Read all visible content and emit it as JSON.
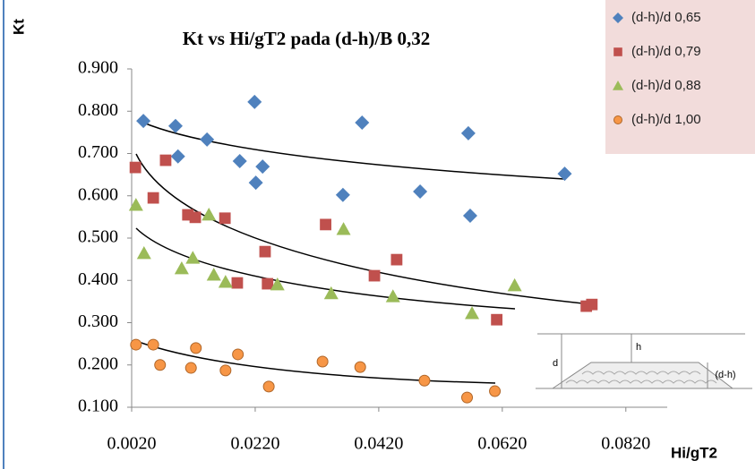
{
  "chart_data": {
    "type": "scatter",
    "title": "Kt vs Hi/gT2 pada (d-h)/B 0,32",
    "y_label": "Kt",
    "x_label": "Hi/gT2",
    "xlim": [
      0.002,
      0.0887
    ],
    "ylim": [
      0.1,
      0.9
    ],
    "xticks": [
      {
        "value": 0.002,
        "label": "0.0020"
      },
      {
        "value": 0.022,
        "label": "0.0220"
      },
      {
        "value": 0.042,
        "label": "0.0420"
      },
      {
        "value": 0.062,
        "label": "0.0620"
      },
      {
        "value": 0.082,
        "label": "0.0820"
      }
    ],
    "yticks": [
      {
        "value": 0.1,
        "label": "0.100"
      },
      {
        "value": 0.2,
        "label": "0.200"
      },
      {
        "value": 0.3,
        "label": "0.300"
      },
      {
        "value": 0.4,
        "label": "0.400"
      },
      {
        "value": 0.5,
        "label": "0.500"
      },
      {
        "value": 0.6,
        "label": "0.600"
      },
      {
        "value": 0.7,
        "label": "0.700"
      },
      {
        "value": 0.8,
        "label": "0.800"
      },
      {
        "value": 0.9,
        "label": "0.900"
      }
    ],
    "legend": "top-right",
    "series": [
      {
        "name": "(d-h)/d 0,65",
        "color": "#4f81bd",
        "marker": "diamond",
        "x": [
          0.0039,
          0.0091,
          0.0095,
          0.0142,
          0.0219,
          0.0195,
          0.0221,
          0.0232,
          0.0362,
          0.0393,
          0.0487,
          0.0565,
          0.0568,
          0.0721
        ],
        "values": [
          0.777,
          0.765,
          0.693,
          0.733,
          0.822,
          0.682,
          0.631,
          0.669,
          0.602,
          0.773,
          0.61,
          0.748,
          0.553,
          0.652
        ]
      },
      {
        "name": "(d-h)/d 0,79",
        "color": "#c0504d",
        "marker": "square",
        "x": [
          0.0026,
          0.0055,
          0.0075,
          0.0111,
          0.0123,
          0.0171,
          0.0191,
          0.0236,
          0.024,
          0.0334,
          0.0413,
          0.0449,
          0.0611,
          0.0756,
          0.0765
        ],
        "values": [
          0.667,
          0.595,
          0.684,
          0.555,
          0.549,
          0.547,
          0.394,
          0.468,
          0.392,
          0.532,
          0.411,
          0.449,
          0.307,
          0.339,
          0.343
        ]
      },
      {
        "name": "(d-h)/d 0,88",
        "color": "#9bbb59",
        "marker": "triangle",
        "x": [
          0.0027,
          0.004,
          0.0101,
          0.0119,
          0.0145,
          0.0153,
          0.0172,
          0.0256,
          0.0343,
          0.0363,
          0.0443,
          0.0571,
          0.064
        ],
        "values": [
          0.578,
          0.464,
          0.428,
          0.453,
          0.555,
          0.413,
          0.396,
          0.39,
          0.369,
          0.521,
          0.362,
          0.322,
          0.388
        ]
      },
      {
        "name": "(d-h)/d 1,00",
        "color": "#f79646",
        "marker": "circle",
        "x": [
          0.0027,
          0.0055,
          0.0066,
          0.0116,
          0.0124,
          0.0172,
          0.0192,
          0.0242,
          0.0329,
          0.039,
          0.0494,
          0.0563,
          0.0608
        ],
        "values": [
          0.248,
          0.248,
          0.2,
          0.193,
          0.24,
          0.187,
          0.225,
          0.149,
          0.208,
          0.195,
          0.163,
          0.123,
          0.138
        ]
      }
    ],
    "inset_labels": [
      "d",
      "h",
      "(d-h)"
    ]
  }
}
